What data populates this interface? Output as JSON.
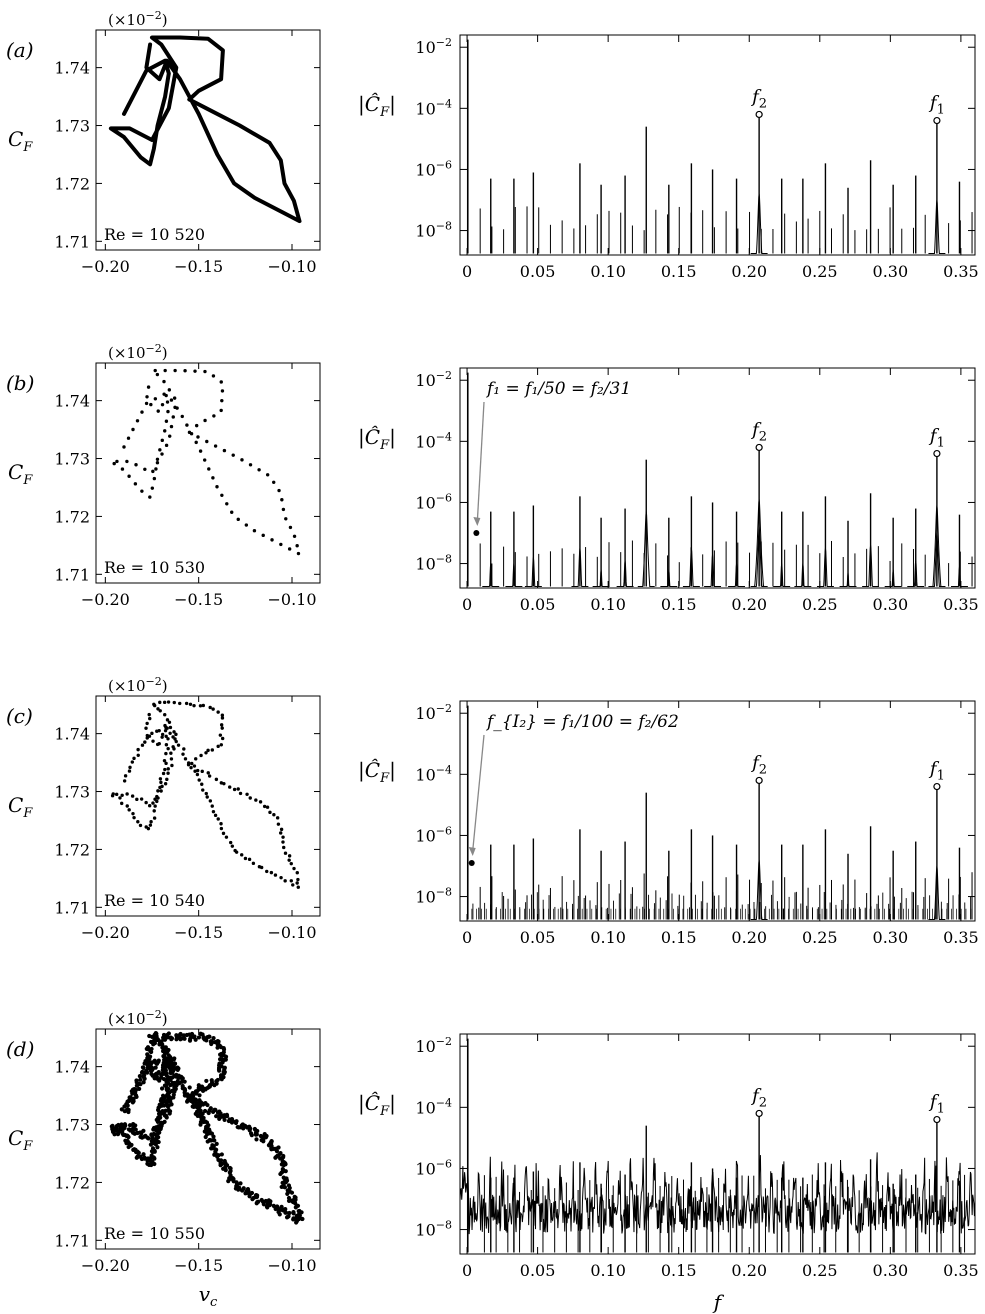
{
  "chart_data": [
    {
      "type": "scatter",
      "panel": "(a)",
      "style": "curve",
      "multiplier": "(×10",
      "multiplier_exp": "−2",
      "ylabel_main": "C",
      "ylabel_sub": "F",
      "re_label": "Re = 10 520",
      "xlim": [
        -0.205,
        -0.085
      ],
      "ylim": [
        1.7085,
        1.7465
      ],
      "x_ticks": [
        -0.2,
        -0.15,
        -0.1
      ],
      "x_tick_labels": [
        "−0.20",
        "−0.15",
        "−0.10"
      ],
      "y_ticks": [
        1.71,
        1.72,
        1.73,
        1.74
      ],
      "y_tick_labels": [
        "1.71",
        "1.72",
        "1.73",
        "1.74"
      ],
      "points": [
        [
          -0.19,
          1.732
        ],
        [
          -0.178,
          1.7395
        ],
        [
          -0.168,
          1.7412
        ],
        [
          -0.166,
          1.739
        ],
        [
          -0.168,
          1.735
        ],
        [
          -0.172,
          1.73
        ],
        [
          -0.174,
          1.726
        ],
        [
          -0.176,
          1.7233
        ],
        [
          -0.181,
          1.7245
        ],
        [
          -0.19,
          1.728
        ],
        [
          -0.197,
          1.7295
        ],
        [
          -0.187,
          1.7295
        ],
        [
          -0.175,
          1.7275
        ],
        [
          -0.166,
          1.733
        ],
        [
          -0.162,
          1.74
        ],
        [
          -0.17,
          1.744
        ],
        [
          -0.175,
          1.7452
        ],
        [
          -0.16,
          1.7452
        ],
        [
          -0.145,
          1.745
        ],
        [
          -0.137,
          1.743
        ],
        [
          -0.138,
          1.738
        ],
        [
          -0.15,
          1.736
        ],
        [
          -0.155,
          1.7345
        ],
        [
          -0.146,
          1.733
        ],
        [
          -0.128,
          1.73
        ],
        [
          -0.112,
          1.727
        ],
        [
          -0.106,
          1.724
        ],
        [
          -0.104,
          1.72
        ],
        [
          -0.099,
          1.717
        ],
        [
          -0.096,
          1.7135
        ],
        [
          -0.105,
          1.715
        ],
        [
          -0.12,
          1.7175
        ],
        [
          -0.131,
          1.72
        ],
        [
          -0.14,
          1.725
        ],
        [
          -0.15,
          1.732
        ],
        [
          -0.16,
          1.738
        ],
        [
          -0.167,
          1.7412
        ],
        [
          -0.171,
          1.738
        ],
        [
          -0.178,
          1.74
        ],
        [
          -0.176,
          1.744
        ]
      ]
    },
    {
      "type": "bar",
      "panel": "(a)",
      "style": "spikes",
      "ylabel": "|Ĉ_F|",
      "xlim": [
        -0.005,
        0.36
      ],
      "ylog": true,
      "ylim_exp": [
        -8.8,
        -1.6
      ],
      "x_ticks": [
        0,
        0.05,
        0.1,
        0.15,
        0.2,
        0.25,
        0.3,
        0.35
      ],
      "x_tick_labels": [
        "0",
        "0.05",
        "0.10",
        "0.15",
        "0.20",
        "0.25",
        "0.30",
        "0.35"
      ],
      "y_tick_exps": [
        -2,
        -4,
        -6,
        -8
      ],
      "f2": {
        "x": 0.207,
        "exp": -4.2,
        "label": "f",
        "sub": "2"
      },
      "f1": {
        "x": 0.333,
        "exp": -4.4,
        "label": "f",
        "sub": "1"
      }
    },
    {
      "type": "scatter",
      "panel": "(b)",
      "style": "dots",
      "multiplier": "(×10",
      "multiplier_exp": "−2",
      "ylabel_main": "C",
      "ylabel_sub": "F",
      "re_label": "Re = 10 530",
      "xlim": [
        -0.205,
        -0.085
      ],
      "ylim": [
        1.7085,
        1.7465
      ],
      "x_ticks": [
        -0.2,
        -0.15,
        -0.1
      ],
      "x_tick_labels": [
        "−0.20",
        "−0.15",
        "−0.10"
      ],
      "y_ticks": [
        1.71,
        1.72,
        1.73,
        1.74
      ],
      "y_tick_labels": [
        "1.71",
        "1.72",
        "1.73",
        "1.74"
      ],
      "points": [
        [
          -0.19,
          1.732
        ],
        [
          -0.178,
          1.7395
        ],
        [
          -0.168,
          1.7412
        ],
        [
          -0.166,
          1.739
        ],
        [
          -0.168,
          1.735
        ],
        [
          -0.172,
          1.73
        ],
        [
          -0.174,
          1.726
        ],
        [
          -0.176,
          1.7233
        ],
        [
          -0.181,
          1.7245
        ],
        [
          -0.19,
          1.728
        ],
        [
          -0.197,
          1.7295
        ],
        [
          -0.187,
          1.7295
        ],
        [
          -0.175,
          1.7275
        ],
        [
          -0.166,
          1.733
        ],
        [
          -0.162,
          1.74
        ],
        [
          -0.17,
          1.744
        ],
        [
          -0.175,
          1.7452
        ],
        [
          -0.16,
          1.7452
        ],
        [
          -0.145,
          1.745
        ],
        [
          -0.137,
          1.743
        ],
        [
          -0.138,
          1.738
        ],
        [
          -0.15,
          1.736
        ],
        [
          -0.155,
          1.7345
        ],
        [
          -0.146,
          1.733
        ],
        [
          -0.128,
          1.73
        ],
        [
          -0.112,
          1.727
        ],
        [
          -0.106,
          1.724
        ],
        [
          -0.104,
          1.72
        ],
        [
          -0.099,
          1.717
        ],
        [
          -0.096,
          1.7135
        ],
        [
          -0.105,
          1.715
        ],
        [
          -0.12,
          1.7175
        ],
        [
          -0.131,
          1.72
        ],
        [
          -0.14,
          1.725
        ],
        [
          -0.15,
          1.732
        ],
        [
          -0.16,
          1.738
        ],
        [
          -0.167,
          1.7412
        ],
        [
          -0.171,
          1.738
        ],
        [
          -0.178,
          1.74
        ],
        [
          -0.176,
          1.744
        ]
      ],
      "dot_count": 100,
      "jitter": 0
    },
    {
      "type": "bar",
      "panel": "(b)",
      "style": "spikes-peaks",
      "ylabel": "|Ĉ_F|",
      "xlim": [
        -0.005,
        0.36
      ],
      "ylog": true,
      "ylim_exp": [
        -8.8,
        -1.6
      ],
      "x_ticks": [
        0,
        0.05,
        0.1,
        0.15,
        0.2,
        0.25,
        0.3,
        0.35
      ],
      "x_tick_labels": [
        "0",
        "0.05",
        "0.10",
        "0.15",
        "0.20",
        "0.25",
        "0.30",
        "0.35"
      ],
      "y_tick_exps": [
        -2,
        -4,
        -6,
        -8
      ],
      "f2": {
        "x": 0.207,
        "exp": -4.2,
        "label": "f",
        "sub": "2"
      },
      "f1": {
        "x": 0.333,
        "exp": -4.4,
        "label": "f",
        "sub": "1"
      },
      "annotation": {
        "text": "f₁ = f₁/50 = f₂/31",
        "x": 0.0066,
        "exp": -7.0
      }
    },
    {
      "type": "scatter",
      "panel": "(c)",
      "style": "dots",
      "multiplier": "(×10",
      "multiplier_exp": "−2",
      "ylabel_main": "C",
      "ylabel_sub": "F",
      "re_label": "Re = 10 540",
      "xlim": [
        -0.205,
        -0.085
      ],
      "ylim": [
        1.7085,
        1.7465
      ],
      "x_ticks": [
        -0.2,
        -0.15,
        -0.1
      ],
      "x_tick_labels": [
        "−0.20",
        "−0.15",
        "−0.10"
      ],
      "y_ticks": [
        1.71,
        1.72,
        1.73,
        1.74
      ],
      "y_tick_labels": [
        "1.71",
        "1.72",
        "1.73",
        "1.74"
      ],
      "points": [
        [
          -0.19,
          1.732
        ],
        [
          -0.178,
          1.7395
        ],
        [
          -0.168,
          1.7412
        ],
        [
          -0.166,
          1.739
        ],
        [
          -0.168,
          1.735
        ],
        [
          -0.172,
          1.73
        ],
        [
          -0.174,
          1.726
        ],
        [
          -0.176,
          1.7233
        ],
        [
          -0.181,
          1.7245
        ],
        [
          -0.19,
          1.728
        ],
        [
          -0.197,
          1.7295
        ],
        [
          -0.187,
          1.7295
        ],
        [
          -0.175,
          1.7275
        ],
        [
          -0.166,
          1.733
        ],
        [
          -0.162,
          1.74
        ],
        [
          -0.17,
          1.744
        ],
        [
          -0.175,
          1.7452
        ],
        [
          -0.16,
          1.7452
        ],
        [
          -0.145,
          1.745
        ],
        [
          -0.137,
          1.743
        ],
        [
          -0.138,
          1.738
        ],
        [
          -0.15,
          1.736
        ],
        [
          -0.155,
          1.7345
        ],
        [
          -0.146,
          1.733
        ],
        [
          -0.128,
          1.73
        ],
        [
          -0.112,
          1.727
        ],
        [
          -0.106,
          1.724
        ],
        [
          -0.104,
          1.72
        ],
        [
          -0.099,
          1.717
        ],
        [
          -0.096,
          1.7135
        ],
        [
          -0.105,
          1.715
        ],
        [
          -0.12,
          1.7175
        ],
        [
          -0.131,
          1.72
        ],
        [
          -0.14,
          1.725
        ],
        [
          -0.15,
          1.732
        ],
        [
          -0.16,
          1.738
        ],
        [
          -0.167,
          1.7412
        ],
        [
          -0.171,
          1.738
        ],
        [
          -0.178,
          1.74
        ],
        [
          -0.176,
          1.744
        ]
      ],
      "dot_count": 200,
      "jitter": 0.0018
    },
    {
      "type": "bar",
      "panel": "(c)",
      "style": "spikes-dense",
      "ylabel": "|Ĉ_F|",
      "xlim": [
        -0.005,
        0.36
      ],
      "ylog": true,
      "ylim_exp": [
        -8.8,
        -1.6
      ],
      "x_ticks": [
        0,
        0.05,
        0.1,
        0.15,
        0.2,
        0.25,
        0.3,
        0.35
      ],
      "x_tick_labels": [
        "0",
        "0.05",
        "0.10",
        "0.15",
        "0.20",
        "0.25",
        "0.30",
        "0.35"
      ],
      "y_tick_exps": [
        -2,
        -4,
        -6,
        -8
      ],
      "f2": {
        "x": 0.207,
        "exp": -4.2,
        "label": "f",
        "sub": "2"
      },
      "f1": {
        "x": 0.333,
        "exp": -4.4,
        "label": "f",
        "sub": "1"
      },
      "annotation": {
        "text": "f_{I₂} = f₁/100 = f₂/62",
        "x": 0.0033,
        "exp": -6.9
      }
    },
    {
      "type": "scatter",
      "panel": "(d)",
      "style": "thick-dots",
      "multiplier": "(×10",
      "multiplier_exp": "−2",
      "ylabel_main": "C",
      "ylabel_sub": "F",
      "re_label": "Re = 10 550",
      "xlabel": "v",
      "xlabel_sub": "c",
      "xlim": [
        -0.205,
        -0.085
      ],
      "ylim": [
        1.7085,
        1.7465
      ],
      "x_ticks": [
        -0.2,
        -0.15,
        -0.1
      ],
      "x_tick_labels": [
        "−0.20",
        "−0.15",
        "−0.10"
      ],
      "y_ticks": [
        1.71,
        1.72,
        1.73,
        1.74
      ],
      "y_tick_labels": [
        "1.71",
        "1.72",
        "1.73",
        "1.74"
      ],
      "points": [
        [
          -0.19,
          1.732
        ],
        [
          -0.178,
          1.7395
        ],
        [
          -0.168,
          1.7412
        ],
        [
          -0.166,
          1.739
        ],
        [
          -0.168,
          1.735
        ],
        [
          -0.172,
          1.73
        ],
        [
          -0.174,
          1.726
        ],
        [
          -0.176,
          1.7233
        ],
        [
          -0.181,
          1.7245
        ],
        [
          -0.19,
          1.728
        ],
        [
          -0.197,
          1.7295
        ],
        [
          -0.187,
          1.7295
        ],
        [
          -0.175,
          1.7275
        ],
        [
          -0.166,
          1.733
        ],
        [
          -0.162,
          1.74
        ],
        [
          -0.17,
          1.744
        ],
        [
          -0.175,
          1.7452
        ],
        [
          -0.16,
          1.7452
        ],
        [
          -0.145,
          1.745
        ],
        [
          -0.137,
          1.743
        ],
        [
          -0.138,
          1.738
        ],
        [
          -0.15,
          1.736
        ],
        [
          -0.155,
          1.7345
        ],
        [
          -0.146,
          1.733
        ],
        [
          -0.128,
          1.73
        ],
        [
          -0.112,
          1.727
        ],
        [
          -0.106,
          1.724
        ],
        [
          -0.104,
          1.72
        ],
        [
          -0.099,
          1.717
        ],
        [
          -0.096,
          1.7135
        ],
        [
          -0.105,
          1.715
        ],
        [
          -0.12,
          1.7175
        ],
        [
          -0.131,
          1.72
        ],
        [
          -0.14,
          1.725
        ],
        [
          -0.15,
          1.732
        ],
        [
          -0.16,
          1.738
        ],
        [
          -0.167,
          1.7412
        ],
        [
          -0.171,
          1.738
        ],
        [
          -0.178,
          1.74
        ],
        [
          -0.176,
          1.744
        ]
      ],
      "dot_count": 900,
      "jitter": 0.004
    },
    {
      "type": "line",
      "panel": "(d)",
      "style": "noisy",
      "ylabel": "|Ĉ_F|",
      "xlabel": "f",
      "xlim": [
        -0.005,
        0.36
      ],
      "ylog": true,
      "ylim_exp": [
        -8.8,
        -1.6
      ],
      "x_ticks": [
        0,
        0.05,
        0.1,
        0.15,
        0.2,
        0.25,
        0.3,
        0.35
      ],
      "x_tick_labels": [
        "0",
        "0.05",
        "0.10",
        "0.15",
        "0.20",
        "0.25",
        "0.30",
        "0.35"
      ],
      "y_tick_exps": [
        -2,
        -4,
        -6,
        -8
      ],
      "f2": {
        "x": 0.207,
        "exp": -4.2,
        "label": "f",
        "sub": "2"
      },
      "f1": {
        "x": 0.333,
        "exp": -4.4,
        "label": "f",
        "sub": "1"
      }
    }
  ],
  "spectrum_common": {
    "base_peaks": [
      {
        "x": 0.0168,
        "exp": -6.3
      },
      {
        "x": 0.0332,
        "exp": -6.3
      },
      {
        "x": 0.047,
        "exp": -6.1
      },
      {
        "x": 0.08,
        "exp": -5.8
      },
      {
        "x": 0.095,
        "exp": -6.5
      },
      {
        "x": 0.112,
        "exp": -6.2
      },
      {
        "x": 0.127,
        "exp": -4.6
      },
      {
        "x": 0.143,
        "exp": -6.5
      },
      {
        "x": 0.159,
        "exp": -5.8
      },
      {
        "x": 0.174,
        "exp": -6.0
      },
      {
        "x": 0.191,
        "exp": -6.3
      },
      {
        "x": 0.207,
        "exp": -4.2
      },
      {
        "x": 0.223,
        "exp": -6.3
      },
      {
        "x": 0.238,
        "exp": -6.3
      },
      {
        "x": 0.254,
        "exp": -5.8
      },
      {
        "x": 0.27,
        "exp": -6.6
      },
      {
        "x": 0.286,
        "exp": -5.7
      },
      {
        "x": 0.302,
        "exp": -6.5
      },
      {
        "x": 0.318,
        "exp": -6.2
      },
      {
        "x": 0.333,
        "exp": -4.4
      },
      {
        "x": 0.349,
        "exp": -6.4
      }
    ]
  }
}
